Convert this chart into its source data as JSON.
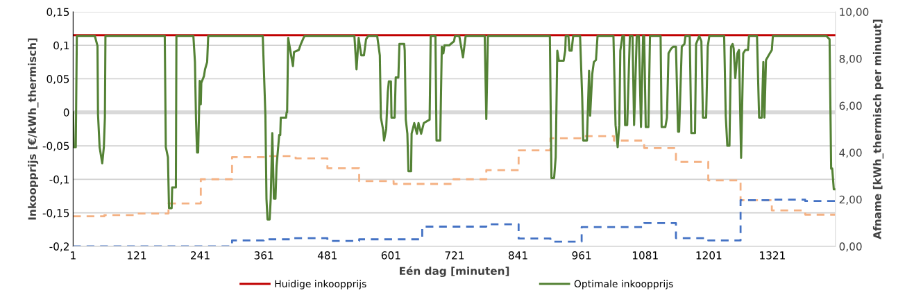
{
  "chart_data": {
    "type": "line",
    "xlabel": "Eén dag [minuten]",
    "ylabel": "Inkoopprijs [€/kWh_thermisch]",
    "y2label": "Afname [kWh_thermisch per minuut]",
    "xlim": [
      1,
      1440
    ],
    "xticks": [
      1,
      121,
      241,
      361,
      481,
      601,
      721,
      841,
      961,
      1081,
      1201,
      1321
    ],
    "ylim": [
      -0.2,
      0.15
    ],
    "yticks": [
      {
        "value": 0.15,
        "label": "0,15"
      },
      {
        "value": 0.1,
        "label": "0,1"
      },
      {
        "value": 0.05,
        "label": "0,05"
      },
      0,
      {
        "value": -0.05,
        "label": "-0,05"
      },
      {
        "value": -0.1,
        "label": "-0,1"
      },
      {
        "value": -0.15,
        "label": "-0,15"
      },
      {
        "value": -0.2,
        "label": "-0,2"
      }
    ],
    "y2lim": [
      0,
      10
    ],
    "y2ticks": [
      {
        "value": 0,
        "label": "0,00"
      },
      {
        "value": 2,
        "label": "2,00"
      },
      {
        "value": 4,
        "label": "4,00"
      },
      {
        "value": 6,
        "label": "6,00"
      },
      {
        "value": 8,
        "label": "8,00"
      },
      {
        "value": 10,
        "label": "10,00"
      }
    ],
    "grid": "y",
    "legend": "bottom",
    "series": [
      {
        "name": "Huidige inkoopprijs",
        "color": "#c00000",
        "line_style": "solid",
        "x": [
          1,
          1440
        ],
        "values": [
          0.115,
          0.115
        ]
      },
      {
        "name": "Optimale inkoopprijs",
        "color": "#548235",
        "line_style": "solid",
        "x": [
          1,
          2,
          6,
          8,
          42,
          47,
          48,
          51,
          56,
          59,
          61,
          62,
          174,
          176,
          180,
          182,
          187,
          188,
          195,
          196,
          228,
          231,
          233,
          235,
          237,
          240,
          242,
          243,
          248,
          250,
          254,
          256,
          359,
          364,
          366,
          368,
          372,
          374,
          377,
          380,
          383,
          385,
          390,
          392,
          393,
          403,
          404,
          405,
          407,
          416,
          418,
          427,
          431,
          436,
          438,
          532,
          536,
          540,
          545,
          550,
          554,
          558,
          575,
          580,
          582,
          586,
          588,
          592,
          595,
          597,
          601,
          602,
          608,
          610,
          615,
          617,
          626,
          627,
          629,
          632,
          634,
          639,
          640,
          645,
          650,
          653,
          658,
          663,
          674,
          676,
          685,
          687,
          694,
          697,
          700,
          702,
          711,
          720,
          722,
          730,
          737,
          742,
          778,
          781,
          784,
          901,
          904,
          909,
          912,
          915,
          918,
          927,
          930,
          931,
          936,
          938,
          942,
          945,
          958,
          962,
          964,
          971,
          975,
          977,
          981,
          984,
          988,
          991,
          1021,
          1025,
          1029,
          1032,
          1034,
          1038,
          1041,
          1043,
          1047,
          1052,
          1057,
          1060,
          1065,
          1069,
          1073,
          1077,
          1079,
          1082,
          1087,
          1090,
          1110,
          1112,
          1119,
          1122,
          1125,
          1130,
          1134,
          1139,
          1143,
          1145,
          1150,
          1155,
          1157,
          1165,
          1168,
          1175,
          1177,
          1183,
          1187,
          1190,
          1196,
          1199,
          1202,
          1230,
          1233,
          1236,
          1240,
          1243,
          1246,
          1248,
          1251,
          1255,
          1258,
          1262,
          1266,
          1270,
          1275,
          1277,
          1292,
          1296,
          1301,
          1304,
          1306,
          1309,
          1314,
          1320,
          1322,
          1423,
          1429,
          1432,
          1434,
          1437,
          1440
        ],
        "values": [
          0,
          -0.052,
          -0.052,
          0.114,
          0.114,
          0.099,
          -0.003,
          -0.052,
          -0.076,
          -0.052,
          -0.008,
          0.114,
          0.114,
          -0.052,
          -0.067,
          -0.143,
          -0.143,
          -0.112,
          -0.112,
          0.114,
          0.114,
          0.075,
          -0.011,
          -0.06,
          -0.06,
          0.047,
          0.012,
          0.044,
          0.054,
          0.064,
          0.075,
          0.114,
          0.114,
          -0.005,
          -0.129,
          -0.16,
          -0.16,
          -0.129,
          -0.031,
          -0.129,
          -0.129,
          -0.081,
          -0.034,
          -0.034,
          -0.008,
          -0.008,
          0,
          0,
          0.111,
          0.069,
          0.09,
          0.093,
          0.102,
          0.111,
          0.114,
          0.114,
          0.064,
          0.111,
          0.085,
          0.085,
          0.109,
          0.114,
          0.114,
          0.085,
          -0.008,
          -0.025,
          -0.042,
          -0.025,
          0.03,
          0.046,
          0.046,
          -0.008,
          -0.008,
          0.052,
          0.052,
          0.102,
          0.102,
          0.092,
          -0.011,
          -0.032,
          -0.088,
          -0.088,
          -0.032,
          -0.016,
          -0.032,
          -0.016,
          -0.032,
          -0.016,
          -0.011,
          0.114,
          0.114,
          -0.042,
          -0.042,
          0.098,
          0.088,
          0.1,
          0.1,
          0.106,
          0.114,
          0.114,
          0.082,
          0.114,
          0.114,
          -0.01,
          0.114,
          0.114,
          -0.098,
          -0.098,
          -0.067,
          0.092,
          0.077,
          0.077,
          0.092,
          0.114,
          0.114,
          0.092,
          0.092,
          0.114,
          0.114,
          0.023,
          -0.042,
          -0.042,
          0.062,
          -0.005,
          0.057,
          0.075,
          0.078,
          0.114,
          0.114,
          -0.019,
          -0.052,
          -0.019,
          0.092,
          0.114,
          0.114,
          -0.019,
          -0.019,
          0.114,
          0.114,
          -0.019,
          0.114,
          0.114,
          -0.022,
          0.114,
          0.114,
          -0.022,
          -0.022,
          0.114,
          0.114,
          -0.022,
          -0.022,
          -0.008,
          0.088,
          0.095,
          0.098,
          0.098,
          -0.029,
          -0.029,
          0.098,
          0.102,
          0.114,
          0.114,
          -0.031,
          -0.031,
          0.102,
          0.114,
          0.106,
          -0.008,
          -0.008,
          0.098,
          0.114,
          0.114,
          -0.005,
          -0.05,
          -0.05,
          0.098,
          0.102,
          0.095,
          0.051,
          0.088,
          0.093,
          -0.068,
          0.088,
          0.093,
          0.093,
          0.114,
          0.114,
          -0.008,
          -0.008,
          0.075,
          -0.008,
          0.078,
          0.085,
          0.093,
          0.114,
          0.114,
          0.109,
          -0.084,
          -0.084,
          -0.115,
          -0.115
        ]
      },
      {
        "type": "step",
        "axis": "y2",
        "color": "#f4b183",
        "line_style": "dashed",
        "x": [
          1,
          60,
          121,
          181,
          242,
          301,
          361,
          421,
          481,
          541,
          606,
          719,
          781,
          842,
          902,
          964,
          1022,
          1079,
          1139,
          1200,
          1261,
          1320,
          1383,
          1440
        ],
        "values": [
          1.28,
          1.33,
          1.4,
          1.83,
          2.86,
          3.8,
          3.85,
          3.75,
          3.33,
          2.78,
          2.66,
          2.86,
          3.25,
          4.09,
          4.61,
          4.7,
          4.51,
          4.19,
          3.6,
          2.81,
          1.97,
          1.53,
          1.35,
          1.35
        ]
      },
      {
        "type": "step",
        "axis": "y2",
        "color": "#4472c4",
        "line_style": "dashed",
        "x": [
          1,
          301,
          361,
          418,
          481,
          541,
          660,
          781,
          842,
          902,
          961,
          1079,
          1139,
          1200,
          1261,
          1320,
          1383,
          1440
        ],
        "values": [
          0,
          0.25,
          0.3,
          0.35,
          0.23,
          0.3,
          0.84,
          0.94,
          0.33,
          0.2,
          0.82,
          0.99,
          0.35,
          0.25,
          1.97,
          1.99,
          1.93,
          1.93
        ]
      }
    ]
  }
}
